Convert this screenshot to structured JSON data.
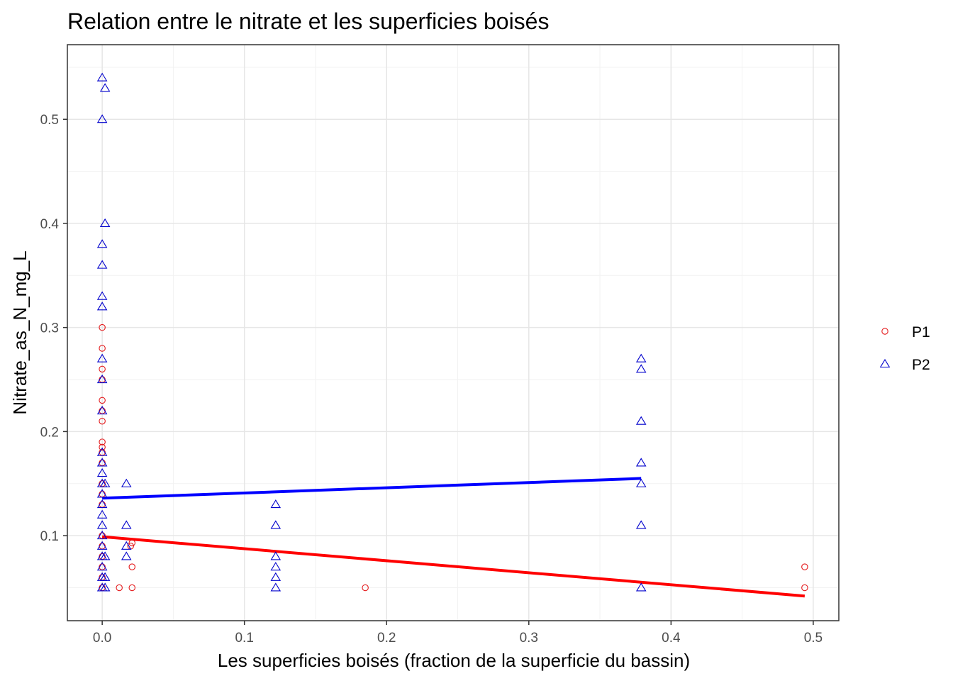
{
  "chart_data": {
    "type": "scatter",
    "title": "Relation entre le nitrate et les superficies boisés",
    "xlabel": "Les superficies boisés (fraction de la superficie du bassin)",
    "ylabel": "Nitrate_as_N_mg_L",
    "xlim": [
      -0.0245,
      0.518
    ],
    "ylim": [
      0.0183,
      0.5717
    ],
    "x_ticks": [
      "0.0",
      "0.1",
      "0.2",
      "0.3",
      "0.4",
      "0.5"
    ],
    "y_ticks": [
      "0.1",
      "0.2",
      "0.3",
      "0.4",
      "0.5"
    ],
    "grid": true,
    "legend_position": "right",
    "series": [
      {
        "name": "P1",
        "color": "#e41a1c",
        "marker": "circle",
        "points": [
          [
            0,
            0.3
          ],
          [
            0,
            0.28
          ],
          [
            0,
            0.26
          ],
          [
            0,
            0.25
          ],
          [
            0,
            0.23
          ],
          [
            0,
            0.22
          ],
          [
            0,
            0.21
          ],
          [
            0,
            0.19
          ],
          [
            0,
            0.185
          ],
          [
            0,
            0.18
          ],
          [
            0,
            0.17
          ],
          [
            0,
            0.15
          ],
          [
            0,
            0.14
          ],
          [
            0,
            0.13
          ],
          [
            0,
            0.1
          ],
          [
            0,
            0.09
          ],
          [
            0,
            0.08
          ],
          [
            0,
            0.07
          ],
          [
            0,
            0.06
          ],
          [
            0,
            0.05
          ],
          [
            0.012,
            0.05
          ],
          [
            0.021,
            0.05
          ],
          [
            0.021,
            0.07
          ],
          [
            0.021,
            0.093
          ],
          [
            0.02,
            0.09
          ],
          [
            0.185,
            0.05
          ],
          [
            0.494,
            0.05
          ],
          [
            0.494,
            0.07
          ]
        ],
        "fit": [
          [
            0,
            0.099
          ],
          [
            0.494,
            0.042
          ]
        ]
      },
      {
        "name": "P2",
        "color": "#0000cc",
        "marker": "triangle",
        "points": [
          [
            0,
            0.54
          ],
          [
            0.002,
            0.53
          ],
          [
            0,
            0.5
          ],
          [
            0.002,
            0.4
          ],
          [
            0,
            0.38
          ],
          [
            0,
            0.36
          ],
          [
            0,
            0.33
          ],
          [
            0,
            0.32
          ],
          [
            0,
            0.27
          ],
          [
            0,
            0.25
          ],
          [
            0,
            0.22
          ],
          [
            0,
            0.18
          ],
          [
            0,
            0.17
          ],
          [
            0,
            0.16
          ],
          [
            0,
            0.15
          ],
          [
            0.002,
            0.15
          ],
          [
            0,
            0.14
          ],
          [
            0,
            0.13
          ],
          [
            0,
            0.12
          ],
          [
            0,
            0.11
          ],
          [
            0,
            0.1
          ],
          [
            0,
            0.09
          ],
          [
            0,
            0.08
          ],
          [
            0.002,
            0.08
          ],
          [
            0,
            0.07
          ],
          [
            0,
            0.06
          ],
          [
            0.002,
            0.06
          ],
          [
            0,
            0.05
          ],
          [
            0.002,
            0.05
          ],
          [
            0.017,
            0.15
          ],
          [
            0.017,
            0.11
          ],
          [
            0.017,
            0.09
          ],
          [
            0.017,
            0.08
          ],
          [
            0.122,
            0.13
          ],
          [
            0.122,
            0.11
          ],
          [
            0.122,
            0.08
          ],
          [
            0.122,
            0.07
          ],
          [
            0.122,
            0.06
          ],
          [
            0.122,
            0.05
          ],
          [
            0.379,
            0.27
          ],
          [
            0.379,
            0.26
          ],
          [
            0.379,
            0.21
          ],
          [
            0.379,
            0.17
          ],
          [
            0.379,
            0.15
          ],
          [
            0.379,
            0.11
          ],
          [
            0.379,
            0.05
          ]
        ],
        "fit": [
          [
            0,
            0.136
          ],
          [
            0.379,
            0.155
          ]
        ]
      }
    ]
  }
}
